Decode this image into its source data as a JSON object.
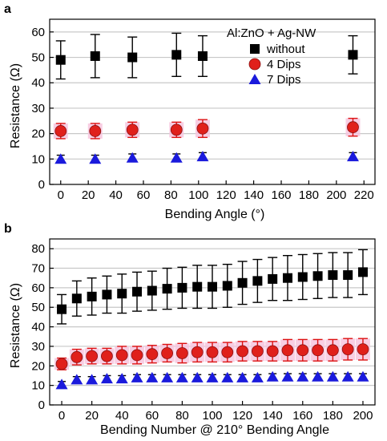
{
  "chart_data": [
    {
      "type": "scatter",
      "panel_label": "a",
      "xlabel": "Bending Angle (°)",
      "ylabel": "Resistance (Ω)",
      "xlim": [
        -8,
        228
      ],
      "ylim": [
        0,
        65
      ],
      "xticks": [
        0,
        20,
        40,
        60,
        80,
        100,
        120,
        140,
        160,
        180,
        200,
        220
      ],
      "yticks": [
        0,
        10,
        20,
        30,
        40,
        50,
        60
      ],
      "grid": "horizontal",
      "legend_title": "Al:ZnO + Ag-NW",
      "legend_position": "top-right",
      "series": [
        {
          "name": "without",
          "marker": "square",
          "color": "#000000",
          "x": [
            0,
            25,
            52,
            84,
            103,
            212
          ],
          "y": [
            49,
            50.5,
            50,
            51,
            50.5,
            51
          ],
          "err": [
            7.5,
            8.5,
            8,
            8.5,
            8,
            7.5
          ]
        },
        {
          "name": "4 Dips",
          "marker": "circle",
          "color": "#e0201b",
          "x": [
            0,
            25,
            52,
            84,
            103,
            212
          ],
          "y": [
            21,
            21,
            21.5,
            21.5,
            22,
            22.5
          ],
          "err": [
            3,
            3,
            3,
            3,
            3.5,
            3.5
          ]
        },
        {
          "name": "7 Dips",
          "marker": "triangle",
          "color": "#1a1adc",
          "x": [
            0,
            25,
            52,
            84,
            103,
            212
          ],
          "y": [
            10,
            10,
            10.5,
            10.5,
            11,
            11
          ],
          "err": [
            1.5,
            1.5,
            1.5,
            1.5,
            1.5,
            1.5
          ]
        }
      ]
    },
    {
      "type": "scatter",
      "panel_label": "b",
      "xlabel": "Bending Number @ 210° Bending Angle",
      "ylabel": "Resistance (Ω)",
      "xlim": [
        -8,
        208
      ],
      "ylim": [
        0,
        85
      ],
      "xticks": [
        0,
        20,
        40,
        60,
        80,
        100,
        120,
        140,
        160,
        180,
        200
      ],
      "yticks": [
        0,
        10,
        20,
        30,
        40,
        50,
        60,
        70,
        80
      ],
      "grid": "horizontal",
      "series": [
        {
          "name": "without",
          "marker": "square",
          "color": "#000000",
          "x": [
            0,
            10,
            20,
            30,
            40,
            50,
            60,
            70,
            80,
            90,
            100,
            110,
            120,
            130,
            140,
            150,
            160,
            170,
            180,
            190,
            200
          ],
          "y": [
            49,
            54.5,
            55.5,
            56.5,
            57,
            58,
            58.5,
            59.5,
            60,
            60.5,
            60.5,
            61,
            62.5,
            63.5,
            64.5,
            65,
            65.5,
            66,
            66.5,
            66.5,
            68
          ],
          "err": [
            7.5,
            9,
            9.5,
            9.5,
            10,
            10,
            10,
            10.5,
            10.5,
            11,
            11,
            11,
            11,
            11,
            11,
            11.5,
            11.5,
            11.5,
            11.5,
            11.5,
            11.5
          ]
        },
        {
          "name": "4 Dips",
          "marker": "circle",
          "color": "#e0201b",
          "x": [
            0,
            10,
            20,
            30,
            40,
            50,
            60,
            70,
            80,
            90,
            100,
            110,
            120,
            130,
            140,
            150,
            160,
            170,
            180,
            190,
            200
          ],
          "y": [
            21,
            24.5,
            25,
            25,
            25.5,
            25.5,
            26,
            26.5,
            26.5,
            27,
            27,
            27,
            27.5,
            27.5,
            27.5,
            28,
            28,
            28,
            28,
            28.5,
            28.5
          ],
          "err": [
            3,
            4,
            4,
            4,
            4.5,
            4.5,
            4.5,
            4.5,
            5,
            5,
            5,
            5,
            5,
            5,
            5,
            5.5,
            5.5,
            5.5,
            5.5,
            5.5,
            5.5
          ]
        },
        {
          "name": "7 Dips",
          "marker": "triangle",
          "color": "#1a1adc",
          "x": [
            0,
            10,
            20,
            30,
            40,
            50,
            60,
            70,
            80,
            90,
            100,
            110,
            120,
            130,
            140,
            150,
            160,
            170,
            180,
            190,
            200
          ],
          "y": [
            10.5,
            13,
            13,
            13.5,
            13.5,
            14,
            14,
            14,
            14,
            14,
            14,
            14,
            14,
            14,
            14.5,
            14.5,
            14.5,
            14.5,
            14.5,
            14.5,
            14.5
          ],
          "err": [
            1.5,
            1.5,
            1.5,
            1.5,
            1.5,
            1.5,
            1.5,
            1.5,
            1.5,
            1.5,
            1.5,
            1.5,
            1.5,
            1.5,
            1.5,
            1.5,
            1.5,
            1.5,
            1.5,
            1.5,
            1.5
          ]
        }
      ]
    }
  ]
}
